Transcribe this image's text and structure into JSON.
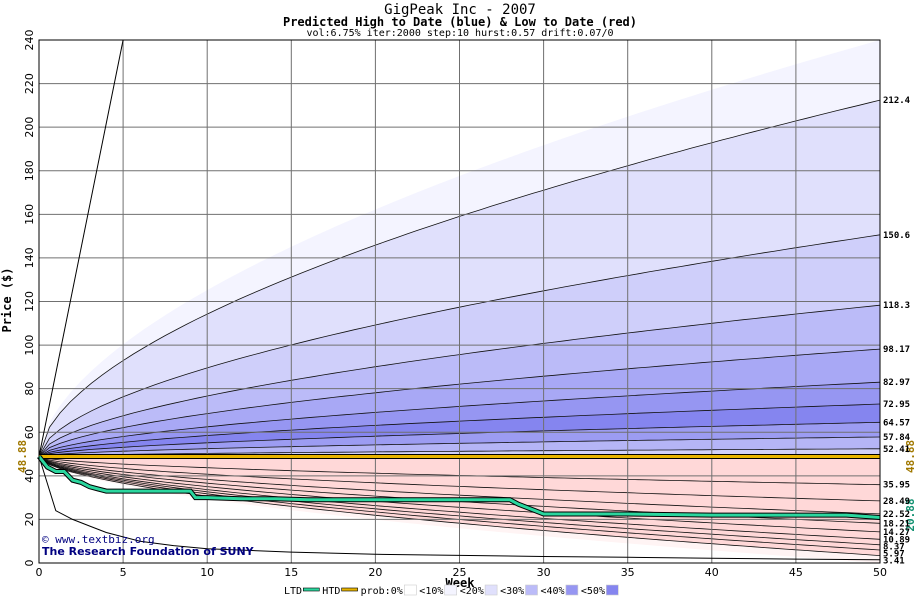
{
  "chart_data": {
    "type": "area",
    "title": "GigPeak Inc - 2007",
    "subtitle": "Predicted High to Date (blue) &  Low to Date (red)",
    "params": "vol:6.75% iter:2000 step:10 hurst:0.57 drift:0.07/0",
    "xlabel": "Week",
    "ylabel": "Price ($)",
    "xlim": [
      0,
      50
    ],
    "ylim": [
      0,
      240
    ],
    "x_ticks": [
      0,
      5,
      10,
      15,
      20,
      25,
      30,
      35,
      40,
      45,
      50
    ],
    "y_ticks": [
      0,
      20,
      40,
      60,
      80,
      100,
      120,
      140,
      160,
      180,
      200,
      220,
      240
    ],
    "grid": true,
    "start_price": 48.88,
    "start_price_label": "48.88",
    "current_price_label": "48.88",
    "htd_end_label": "20.88",
    "high_curve_end_labels": [
      "212.4",
      "150.6",
      "118.3",
      "98.17",
      "82.97",
      "72.95",
      "64.57",
      "57.84",
      "52.41"
    ],
    "high_curve_end_values": [
      212.4,
      150.6,
      118.3,
      98.17,
      82.97,
      72.95,
      64.57,
      57.84,
      52.41
    ],
    "low_curve_end_labels": [
      "35.95",
      "28.49",
      "22.52",
      "18.21",
      "14.27",
      "10.89",
      "8.37",
      "5.97",
      "3.41"
    ],
    "low_curve_end_values": [
      35.95,
      28.49,
      22.52,
      18.21,
      14.27,
      10.89,
      8.37,
      5.97,
      3.41
    ],
    "max_line": {
      "x": [
        0,
        5
      ],
      "y": [
        48.88,
        240
      ]
    },
    "min_line": {
      "x": [
        0,
        1,
        2,
        3,
        4,
        5,
        6,
        8,
        10,
        15,
        20,
        25,
        30,
        35,
        40,
        45,
        50
      ],
      "y": [
        48.88,
        24,
        20,
        17,
        14,
        12,
        10,
        8,
        6.5,
        5,
        4,
        3.5,
        3,
        2.6,
        2.2,
        1.8,
        1.5
      ]
    },
    "htd_series": {
      "name": "HTD",
      "x": [
        0,
        0.5,
        1,
        1.5,
        2,
        2.5,
        3,
        3.5,
        4,
        5,
        6,
        7,
        8,
        9,
        9.3,
        10,
        12,
        14,
        16,
        18,
        20,
        22,
        24,
        26,
        28,
        28.5,
        29.5,
        30,
        32,
        35,
        40,
        45,
        48,
        50
      ],
      "y": [
        48.88,
        44,
        42,
        42,
        38,
        37,
        35,
        34,
        33,
        33,
        33,
        33,
        33,
        33,
        30,
        30,
        29.5,
        29.5,
        29,
        29,
        29,
        29,
        29,
        29,
        29,
        27,
        24,
        22.5,
        22.5,
        22.5,
        22,
        22,
        22,
        20.88
      ]
    },
    "ltd_series": {
      "name": "LTD",
      "y": 48.88
    },
    "fill_colors_high": [
      "#f4f4ff",
      "#e0e0fc",
      "#cfcffa",
      "#bbbbf8",
      "#a8a8f5",
      "#9696f2",
      "#8585ef",
      "#9c9cf2",
      "#b5b5f6",
      "#d0d0fa"
    ],
    "fill_colors_low": [
      "#fff4f4",
      "#ffe3e3",
      "#ffd2d2",
      "#ffbcbc",
      "#ffa7a7",
      "#ff8f8f",
      "#ff7c7c",
      "#ff9a9a",
      "#ffb8b8",
      "#ffd8d8"
    ],
    "legend": {
      "placement": "bottom",
      "items": [
        {
          "label": "LTD",
          "color": "#2bd69e"
        },
        {
          "label": "HTD",
          "color": "#e8b400"
        },
        {
          "label": "prob:0%",
          "color": "#ffffff"
        },
        {
          "label": "<10%",
          "color": "#f4f4ff"
        },
        {
          "label": "<20%",
          "color": "#e0e0fc"
        },
        {
          "label": "<30%",
          "color": "#bbbbf8"
        },
        {
          "label": "<40%",
          "color": "#9696f2"
        },
        {
          "label": "<50%",
          "color": "#8585ef"
        }
      ]
    }
  },
  "watermark": {
    "line1": "© www.textbiz.org",
    "line2": "The Research Foundation of SUNY"
  }
}
